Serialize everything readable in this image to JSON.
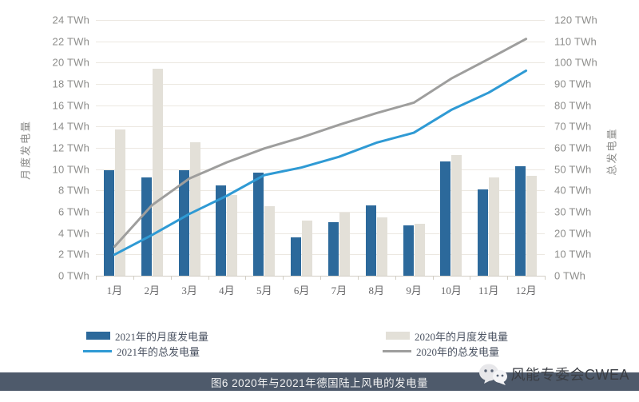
{
  "chart_data": {
    "type": "bar",
    "subtype": "combo-bar-line-dual-axis",
    "title": "图6 2020年与2021年德国陆上风电的发电量",
    "categories": [
      "1月",
      "2月",
      "3月",
      "4月",
      "5月",
      "6月",
      "7月",
      "8月",
      "9月",
      "10月",
      "11月",
      "12月"
    ],
    "left_axis": {
      "label": "月度发电量",
      "unit": "TWh",
      "min": 0,
      "max": 24,
      "step": 2
    },
    "right_axis": {
      "label": "总发电量",
      "unit": "TWh",
      "min": 0,
      "max": 120,
      "step": 10
    },
    "grid": true,
    "legend_position": "bottom",
    "series": [
      {
        "name": "2021年的月度发电量",
        "type": "bar",
        "axis": "left",
        "color": "#2c699b",
        "values": [
          9.9,
          9.2,
          9.9,
          8.5,
          9.7,
          3.6,
          5.0,
          6.6,
          4.7,
          10.7,
          8.1,
          10.3
        ]
      },
      {
        "name": "2020年的月度发电量",
        "type": "bar",
        "axis": "left",
        "color": "#e3e0d8",
        "values": [
          13.7,
          19.4,
          12.5,
          7.6,
          6.5,
          5.2,
          5.9,
          5.5,
          4.9,
          11.3,
          9.2,
          9.4
        ]
      },
      {
        "name": "2021年的总发电量",
        "type": "line",
        "axis": "right",
        "color": "#2f9ad4",
        "values": [
          9.9,
          19.1,
          29.0,
          37.5,
          47.2,
          50.8,
          55.8,
          62.4,
          67.1,
          77.8,
          85.9,
          96.2
        ]
      },
      {
        "name": "2020年的总发电量",
        "type": "line",
        "axis": "right",
        "color": "#9e9e9d",
        "values": [
          13.7,
          33.1,
          45.6,
          53.2,
          59.7,
          64.9,
          70.8,
          76.3,
          81.2,
          92.5,
          101.7,
          111.1
        ]
      }
    ]
  },
  "footer": {
    "caption": "图6 2020年与2021年德国陆上风电的发电量"
  },
  "watermark": {
    "text": "风能专委会CWEA",
    "icon": "wechat-icon"
  }
}
